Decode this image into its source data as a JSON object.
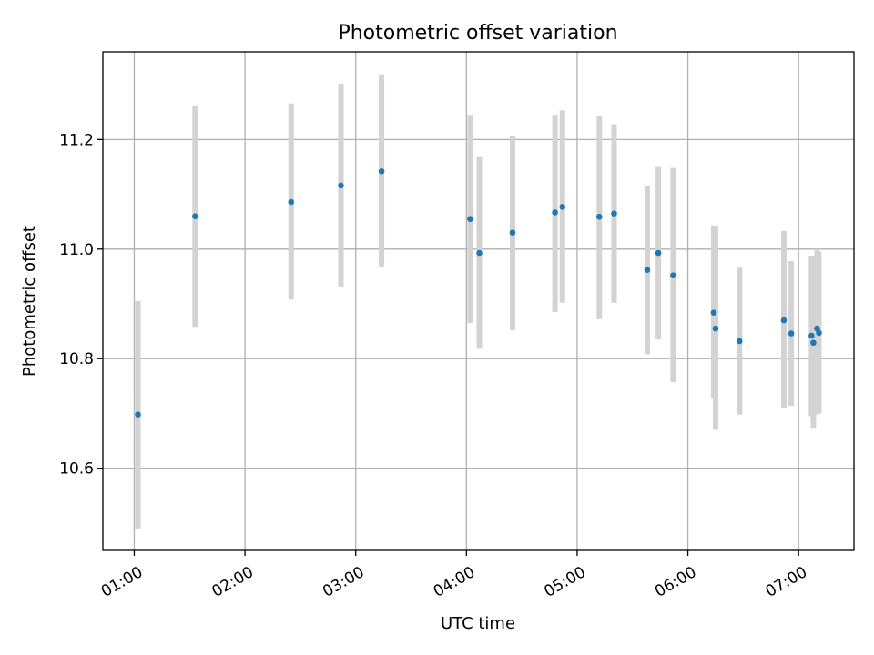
{
  "chart_data": {
    "type": "scatter",
    "title": "Photometric offset variation",
    "xlabel": "UTC time",
    "ylabel": "Photometric offset",
    "x_type": "time",
    "xlim": [
      "00:43",
      "07:30"
    ],
    "ylim": [
      10.45,
      11.36
    ],
    "x_ticks": [
      "01:00",
      "02:00",
      "03:00",
      "04:00",
      "05:00",
      "06:00",
      "07:00"
    ],
    "y_ticks": [
      10.6,
      10.8,
      11.0,
      11.2
    ],
    "y_tick_labels": [
      "10.6",
      "10.8",
      "11.0",
      "11.2"
    ],
    "grid": true,
    "colors": {
      "points": "#1f77b4",
      "error_bars": "#d3d3d3"
    },
    "points": [
      {
        "x": "01:02",
        "y": 10.698,
        "ylow": 10.49,
        "yhigh": 10.905
      },
      {
        "x": "01:33",
        "y": 11.06,
        "ylow": 10.858,
        "yhigh": 11.262
      },
      {
        "x": "02:25",
        "y": 11.086,
        "ylow": 10.908,
        "yhigh": 11.266
      },
      {
        "x": "02:52",
        "y": 11.116,
        "ylow": 10.93,
        "yhigh": 11.302
      },
      {
        "x": "03:14",
        "y": 11.142,
        "ylow": 10.967,
        "yhigh": 11.319
      },
      {
        "x": "04:02",
        "y": 11.055,
        "ylow": 10.865,
        "yhigh": 11.245
      },
      {
        "x": "04:07",
        "y": 10.993,
        "ylow": 10.818,
        "yhigh": 11.168
      },
      {
        "x": "04:25",
        "y": 11.03,
        "ylow": 10.852,
        "yhigh": 11.207
      },
      {
        "x": "04:48",
        "y": 11.067,
        "ylow": 10.885,
        "yhigh": 11.245
      },
      {
        "x": "04:52",
        "y": 11.077,
        "ylow": 10.902,
        "yhigh": 11.253
      },
      {
        "x": "05:12",
        "y": 11.059,
        "ylow": 10.872,
        "yhigh": 11.244
      },
      {
        "x": "05:20",
        "y": 11.065,
        "ylow": 10.902,
        "yhigh": 11.228
      },
      {
        "x": "05:38",
        "y": 10.962,
        "ylow": 10.808,
        "yhigh": 11.115
      },
      {
        "x": "05:44",
        "y": 10.993,
        "ylow": 10.835,
        "yhigh": 11.15
      },
      {
        "x": "05:52",
        "y": 10.952,
        "ylow": 10.757,
        "yhigh": 11.148
      },
      {
        "x": "06:14",
        "y": 10.884,
        "ylow": 10.728,
        "yhigh": 11.043
      },
      {
        "x": "06:15",
        "y": 10.855,
        "ylow": 10.67,
        "yhigh": 11.043
      },
      {
        "x": "06:28",
        "y": 10.832,
        "ylow": 10.698,
        "yhigh": 10.966
      },
      {
        "x": "06:52",
        "y": 10.87,
        "ylow": 10.71,
        "yhigh": 11.033
      },
      {
        "x": "06:56",
        "y": 10.846,
        "ylow": 10.714,
        "yhigh": 10.978
      },
      {
        "x": "07:07",
        "y": 10.842,
        "ylow": 10.695,
        "yhigh": 10.988
      },
      {
        "x": "07:08",
        "y": 10.829,
        "ylow": 10.672,
        "yhigh": 10.988
      },
      {
        "x": "07:10",
        "y": 10.855,
        "ylow": 10.698,
        "yhigh": 10.998
      },
      {
        "x": "07:11",
        "y": 10.847,
        "ylow": 10.7,
        "yhigh": 10.995
      }
    ]
  }
}
